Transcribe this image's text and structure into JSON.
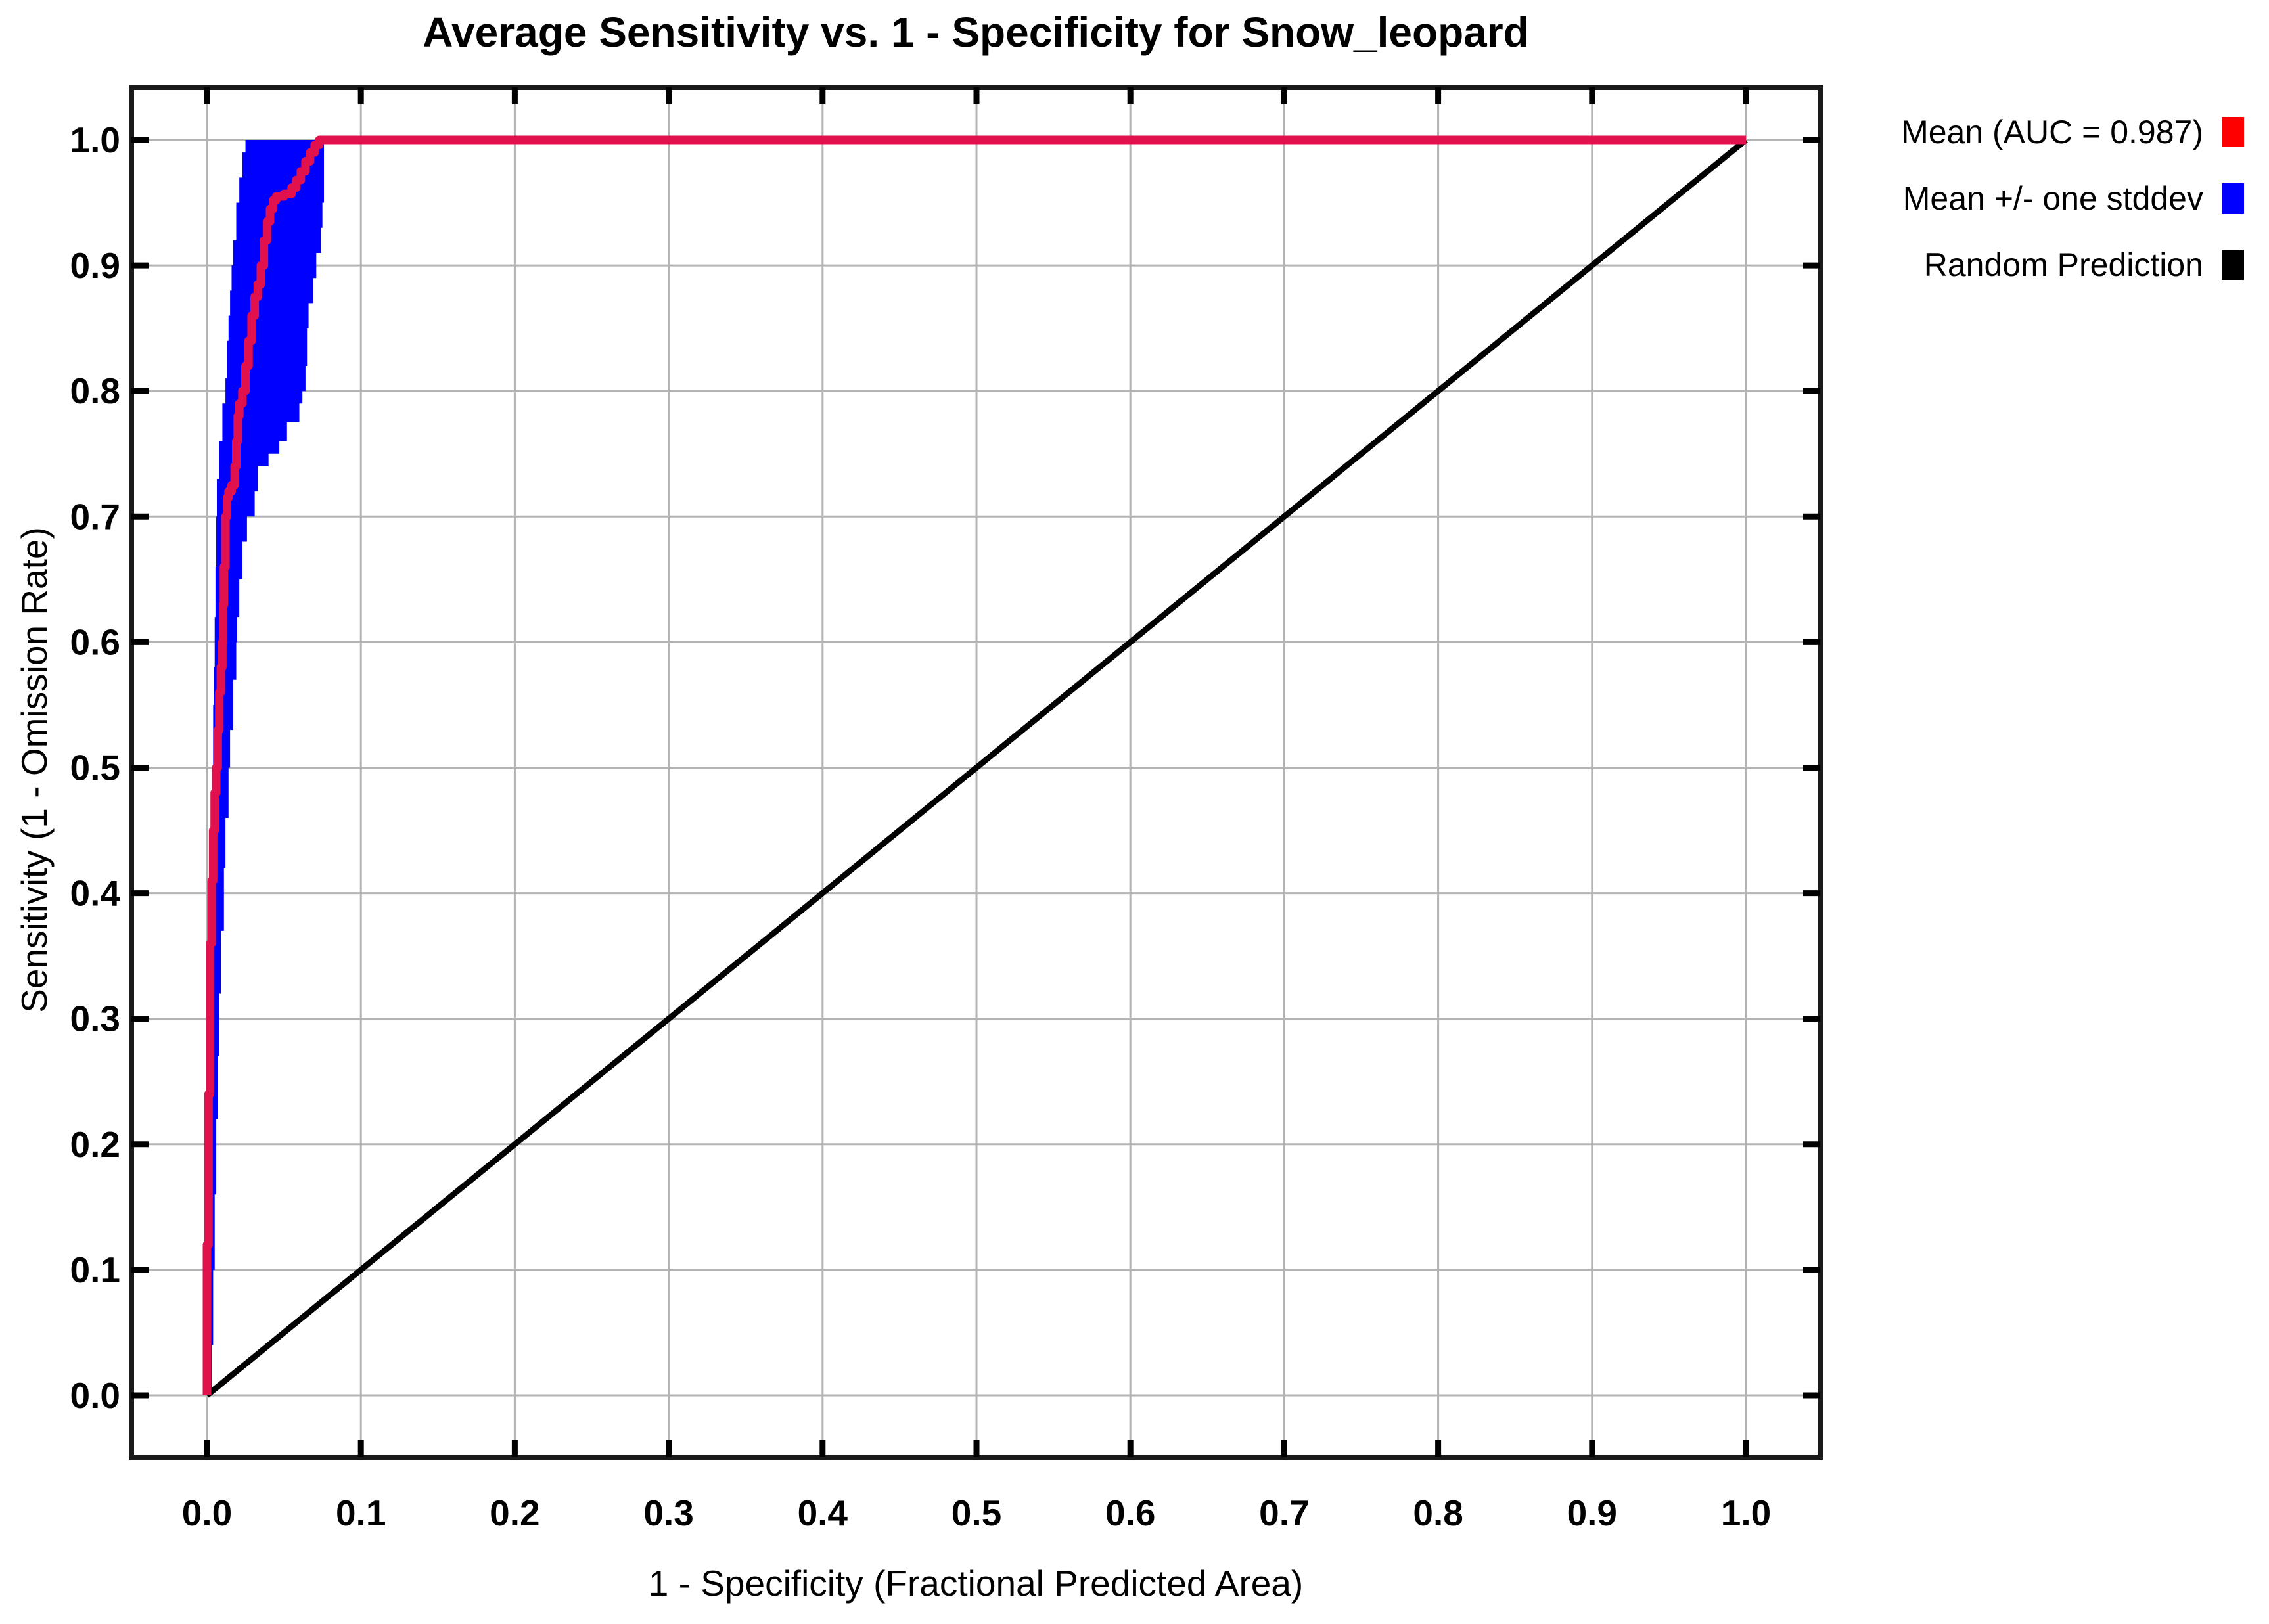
{
  "chart_data": {
    "type": "line",
    "title": "Average Sensitivity vs. 1 - Specificity for Snow_leopard",
    "xlabel": "1 - Specificity (Fractional Predicted Area)",
    "ylabel": "Sensitivity (1 - Omission Rate)",
    "species": "Snow_leopard",
    "auc": 0.987,
    "xlim": [
      -0.05,
      1.05
    ],
    "ylim": [
      -0.05,
      1.05
    ],
    "x_ticks": [
      "0.0",
      "0.1",
      "0.2",
      "0.3",
      "0.4",
      "0.5",
      "0.6",
      "0.7",
      "0.8",
      "0.9",
      "1.0"
    ],
    "y_ticks": [
      "0.0",
      "0.1",
      "0.2",
      "0.3",
      "0.4",
      "0.5",
      "0.6",
      "0.7",
      "0.8",
      "0.9",
      "1.0"
    ],
    "grid": true,
    "grid_color": "#b3b3b3",
    "frame_color": "#1a1a1a",
    "legend_position": "outside-top-right",
    "series": [
      {
        "name": "Mean (AUC = 0.987)",
        "type": "line",
        "color": "#e0114d",
        "stroke_width": 13,
        "step": true,
        "points": [
          [
            0.0,
            0.0
          ],
          [
            0.0,
            0.06
          ],
          [
            0.001,
            0.12
          ],
          [
            0.001,
            0.18
          ],
          [
            0.002,
            0.24
          ],
          [
            0.002,
            0.3
          ],
          [
            0.003,
            0.36
          ],
          [
            0.004,
            0.41
          ],
          [
            0.005,
            0.45
          ],
          [
            0.006,
            0.48
          ],
          [
            0.007,
            0.5
          ],
          [
            0.008,
            0.53
          ],
          [
            0.009,
            0.56
          ],
          [
            0.01,
            0.58
          ],
          [
            0.0105,
            0.6
          ],
          [
            0.011,
            0.63
          ],
          [
            0.012,
            0.66
          ],
          [
            0.013,
            0.7
          ],
          [
            0.014,
            0.715
          ],
          [
            0.016,
            0.72
          ],
          [
            0.018,
            0.725
          ],
          [
            0.019,
            0.74
          ],
          [
            0.02,
            0.76
          ],
          [
            0.021,
            0.78
          ],
          [
            0.023,
            0.79
          ],
          [
            0.025,
            0.8
          ],
          [
            0.027,
            0.82
          ],
          [
            0.029,
            0.84
          ],
          [
            0.031,
            0.86
          ],
          [
            0.033,
            0.875
          ],
          [
            0.035,
            0.885
          ],
          [
            0.037,
            0.9
          ],
          [
            0.039,
            0.92
          ],
          [
            0.041,
            0.935
          ],
          [
            0.043,
            0.945
          ],
          [
            0.045,
            0.952
          ],
          [
            0.05,
            0.955
          ],
          [
            0.055,
            0.957
          ],
          [
            0.058,
            0.962
          ],
          [
            0.061,
            0.968
          ],
          [
            0.064,
            0.975
          ],
          [
            0.067,
            0.983
          ],
          [
            0.07,
            0.99
          ],
          [
            0.073,
            0.996
          ],
          [
            0.075,
            1.0
          ],
          [
            1.0,
            1.0
          ]
        ]
      },
      {
        "name": "Mean +/- one stddev",
        "type": "band",
        "color": "#0000ff",
        "step": true,
        "polygon": [
          [
            0.0,
            0.0
          ],
          [
            0.0005,
            0.05
          ],
          [
            0.001,
            0.1
          ],
          [
            0.001,
            0.15
          ],
          [
            0.0015,
            0.2
          ],
          [
            0.002,
            0.25
          ],
          [
            0.002,
            0.3
          ],
          [
            0.0025,
            0.35
          ],
          [
            0.003,
            0.4
          ],
          [
            0.0035,
            0.45
          ],
          [
            0.004,
            0.5
          ],
          [
            0.0045,
            0.55
          ],
          [
            0.005,
            0.58
          ],
          [
            0.0055,
            0.62
          ],
          [
            0.006,
            0.66
          ],
          [
            0.0064,
            0.7
          ],
          [
            0.008,
            0.73
          ],
          [
            0.01,
            0.76
          ],
          [
            0.012,
            0.79
          ],
          [
            0.013,
            0.81
          ],
          [
            0.014,
            0.84
          ],
          [
            0.015,
            0.86
          ],
          [
            0.016,
            0.88
          ],
          [
            0.017,
            0.9
          ],
          [
            0.019,
            0.92
          ],
          [
            0.021,
            0.95
          ],
          [
            0.023,
            0.97
          ],
          [
            0.025,
            0.99
          ],
          [
            0.028,
            1.0
          ],
          [
            0.076,
            1.0
          ],
          [
            0.076,
            0.97
          ],
          [
            0.075,
            0.95
          ],
          [
            0.074,
            0.93
          ],
          [
            0.071,
            0.91
          ],
          [
            0.069,
            0.89
          ],
          [
            0.066,
            0.87
          ],
          [
            0.065,
            0.85
          ],
          [
            0.064,
            0.82
          ],
          [
            0.062,
            0.8
          ],
          [
            0.06,
            0.79
          ],
          [
            0.052,
            0.775
          ],
          [
            0.047,
            0.76
          ],
          [
            0.04,
            0.75
          ],
          [
            0.033,
            0.74
          ],
          [
            0.031,
            0.72
          ],
          [
            0.026,
            0.7
          ],
          [
            0.023,
            0.68
          ],
          [
            0.021,
            0.65
          ],
          [
            0.0196,
            0.62
          ],
          [
            0.019,
            0.6
          ],
          [
            0.017,
            0.57
          ],
          [
            0.015,
            0.53
          ],
          [
            0.014,
            0.5
          ],
          [
            0.012,
            0.46
          ],
          [
            0.011,
            0.42
          ],
          [
            0.009,
            0.37
          ],
          [
            0.008,
            0.32
          ],
          [
            0.007,
            0.27
          ],
          [
            0.006,
            0.22
          ],
          [
            0.005,
            0.16
          ],
          [
            0.004,
            0.1
          ],
          [
            0.003,
            0.04
          ],
          [
            0.002,
            0.0
          ]
        ]
      },
      {
        "name": "Random Prediction",
        "type": "line",
        "color": "#000000",
        "stroke_width": 9,
        "step": false,
        "points": [
          [
            0.0,
            0.0
          ],
          [
            1.0,
            1.0
          ]
        ]
      }
    ],
    "legend": [
      {
        "label": "Mean (AUC = 0.987)",
        "color": "#fe0000"
      },
      {
        "label": "Mean +/- one stddev",
        "color": "#0000ff"
      },
      {
        "label": "Random Prediction",
        "color": "#000000"
      }
    ]
  }
}
